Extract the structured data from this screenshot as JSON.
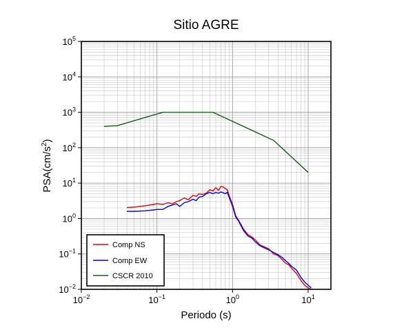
{
  "chart_data": {
    "type": "line",
    "title": "Sitio AGRE",
    "xlabel_main": "Periodo (s)",
    "ylabel_main": "PSA(cm/s",
    "ylabel_sup": "2",
    "ylabel_tail": ")",
    "x_scale": "log",
    "y_scale": "log",
    "xlim": [
      0.01,
      20
    ],
    "ylim": [
      0.01,
      100000
    ],
    "x_ticks": [
      {
        "value": 0.01,
        "base": "10",
        "exp": "−2"
      },
      {
        "value": 0.1,
        "base": "10",
        "exp": "−1"
      },
      {
        "value": 1,
        "base": "10",
        "exp": "0"
      },
      {
        "value": 10,
        "base": "10",
        "exp": "1"
      }
    ],
    "y_ticks": [
      {
        "value": 0.01,
        "base": "10",
        "exp": "−2"
      },
      {
        "value": 0.1,
        "base": "10",
        "exp": "−1"
      },
      {
        "value": 1,
        "base": "10",
        "exp": "0"
      },
      {
        "value": 10,
        "base": "10",
        "exp": "1"
      },
      {
        "value": 100,
        "base": "10",
        "exp": "2"
      },
      {
        "value": 1000,
        "base": "10",
        "exp": "3"
      },
      {
        "value": 10000,
        "base": "10",
        "exp": "4"
      },
      {
        "value": 100000,
        "base": "10",
        "exp": "5"
      }
    ],
    "grid": true,
    "legend_position": "bottom-left",
    "series": [
      {
        "name": "Comp NS",
        "color": "#e00000",
        "x": [
          0.04,
          0.05,
          0.06,
          0.07,
          0.08,
          0.09,
          0.1,
          0.12,
          0.14,
          0.16,
          0.18,
          0.2,
          0.23,
          0.26,
          0.3,
          0.33,
          0.36,
          0.4,
          0.45,
          0.5,
          0.55,
          0.6,
          0.65,
          0.7,
          0.75,
          0.8,
          0.85,
          0.9,
          1.0,
          1.1,
          1.2,
          1.4,
          1.6,
          1.8,
          2.0,
          2.3,
          2.6,
          3.0,
          3.5,
          4.0,
          4.5,
          5.0,
          5.5,
          6.0,
          7.0,
          8.0,
          9.0,
          10.0,
          11.0
        ],
        "y": [
          2.05,
          2.1,
          2.2,
          2.3,
          2.4,
          2.5,
          2.6,
          2.5,
          2.8,
          2.6,
          3.0,
          3.2,
          3.8,
          3.4,
          4.5,
          4.2,
          5.0,
          4.8,
          5.2,
          6.5,
          6.0,
          7.5,
          6.2,
          8.0,
          7.8,
          7.0,
          6.5,
          4.5,
          2.5,
          1.2,
          0.9,
          0.5,
          0.35,
          0.3,
          0.25,
          0.18,
          0.16,
          0.14,
          0.1,
          0.09,
          0.07,
          0.055,
          0.05,
          0.04,
          0.028,
          0.018,
          0.013,
          0.011,
          0.01
        ]
      },
      {
        "name": "Comp EW",
        "color": "#0000e0",
        "x": [
          0.04,
          0.05,
          0.06,
          0.07,
          0.08,
          0.09,
          0.1,
          0.12,
          0.14,
          0.16,
          0.18,
          0.2,
          0.23,
          0.26,
          0.3,
          0.33,
          0.36,
          0.4,
          0.45,
          0.5,
          0.55,
          0.6,
          0.65,
          0.7,
          0.75,
          0.8,
          0.85,
          0.9,
          1.0,
          1.1,
          1.2,
          1.4,
          1.6,
          1.8,
          2.0,
          2.3,
          2.6,
          3.0,
          3.5,
          4.0,
          4.5,
          5.0,
          5.5,
          6.0,
          7.0,
          8.0,
          9.0,
          10.0,
          11.0
        ],
        "y": [
          1.6,
          1.6,
          1.62,
          1.65,
          1.7,
          1.75,
          1.8,
          1.8,
          2.2,
          2.4,
          2.6,
          2.2,
          2.8,
          3.0,
          3.5,
          3.2,
          4.0,
          4.2,
          5.0,
          5.5,
          5.0,
          5.5,
          5.2,
          5.6,
          5.4,
          5.0,
          5.5,
          4.0,
          2.2,
          1.1,
          0.85,
          0.45,
          0.32,
          0.28,
          0.22,
          0.17,
          0.15,
          0.13,
          0.11,
          0.095,
          0.08,
          0.065,
          0.055,
          0.045,
          0.035,
          0.022,
          0.016,
          0.013,
          0.011
        ]
      },
      {
        "name": "CSCR 2010",
        "color": "#1a5c1a",
        "x": [
          0.02,
          0.03,
          0.12,
          0.55,
          3.5,
          10.0
        ],
        "y": [
          400,
          420,
          1000,
          1000,
          160,
          20
        ]
      }
    ]
  }
}
